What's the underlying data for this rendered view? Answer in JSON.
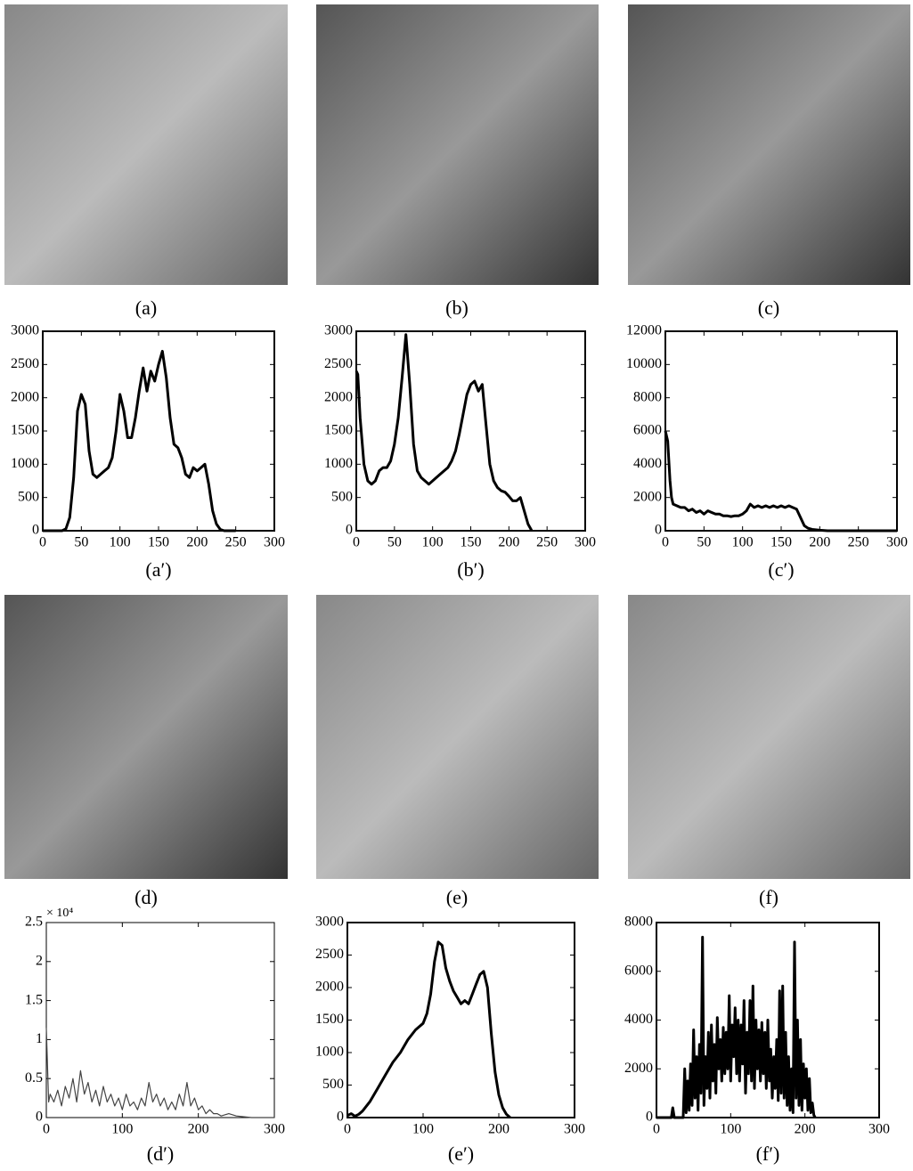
{
  "images": [
    {
      "caption": "(a)"
    },
    {
      "caption": "(b)"
    },
    {
      "caption": "(c)"
    },
    {
      "caption": "(d)"
    },
    {
      "caption": "(e)"
    },
    {
      "caption": "(f)"
    }
  ],
  "chart_data": [
    {
      "type": "line",
      "caption": "(a′)",
      "color": "#000000",
      "x": [
        0,
        5,
        10,
        15,
        20,
        25,
        30,
        35,
        40,
        45,
        50,
        55,
        60,
        65,
        70,
        75,
        80,
        85,
        90,
        95,
        100,
        105,
        110,
        115,
        120,
        125,
        130,
        135,
        140,
        145,
        150,
        155,
        160,
        165,
        170,
        175,
        180,
        185,
        190,
        195,
        200,
        205,
        210,
        215,
        220,
        225,
        230,
        235,
        240,
        245,
        250
      ],
      "values": [
        0,
        0,
        0,
        0,
        0,
        0,
        30,
        200,
        800,
        1800,
        2050,
        1900,
        1200,
        850,
        800,
        850,
        900,
        950,
        1100,
        1500,
        2050,
        1800,
        1400,
        1400,
        1700,
        2100,
        2450,
        2100,
        2400,
        2250,
        2500,
        2700,
        2300,
        1700,
        1300,
        1250,
        1100,
        850,
        800,
        950,
        900,
        950,
        1000,
        700,
        300,
        100,
        20,
        0,
        0,
        0,
        0
      ],
      "xlim": [
        0,
        300
      ],
      "xticks": [
        0,
        50,
        100,
        150,
        200,
        250,
        300
      ],
      "ylim": [
        0,
        3000
      ],
      "yticks": [
        0,
        500,
        1000,
        1500,
        2000,
        2500,
        3000
      ]
    },
    {
      "type": "line",
      "caption": "(b′)",
      "color": "#000000",
      "x": [
        0,
        2,
        5,
        10,
        15,
        20,
        25,
        30,
        35,
        40,
        45,
        50,
        55,
        60,
        65,
        70,
        75,
        80,
        85,
        90,
        95,
        100,
        105,
        110,
        115,
        120,
        125,
        130,
        135,
        140,
        145,
        150,
        155,
        160,
        165,
        170,
        175,
        180,
        185,
        190,
        195,
        200,
        205,
        210,
        215,
        220,
        225,
        230
      ],
      "values": [
        2400,
        2350,
        1700,
        1000,
        750,
        700,
        750,
        900,
        950,
        950,
        1050,
        1300,
        1700,
        2300,
        2950,
        2200,
        1300,
        900,
        800,
        750,
        700,
        750,
        800,
        850,
        900,
        950,
        1050,
        1200,
        1450,
        1750,
        2050,
        2200,
        2250,
        2100,
        2200,
        1600,
        1000,
        750,
        650,
        600,
        580,
        520,
        450,
        450,
        500,
        300,
        100,
        0
      ],
      "xlim": [
        0,
        300
      ],
      "xticks": [
        0,
        50,
        100,
        150,
        200,
        250,
        300
      ],
      "ylim": [
        0,
        3000
      ],
      "yticks": [
        0,
        500,
        1000,
        1500,
        2000,
        2500,
        3000
      ]
    },
    {
      "type": "line",
      "caption": "(c′)",
      "color": "#000000",
      "x": [
        0,
        3,
        6,
        8,
        10,
        15,
        20,
        25,
        30,
        35,
        40,
        45,
        50,
        55,
        60,
        65,
        70,
        75,
        80,
        85,
        90,
        95,
        100,
        105,
        110,
        115,
        120,
        125,
        130,
        135,
        140,
        145,
        150,
        155,
        160,
        165,
        170,
        175,
        180,
        185,
        190,
        200,
        210,
        250,
        300
      ],
      "values": [
        6000,
        5400,
        3000,
        2000,
        1600,
        1500,
        1400,
        1400,
        1200,
        1300,
        1100,
        1200,
        1000,
        1200,
        1100,
        1000,
        1000,
        900,
        900,
        850,
        900,
        900,
        1000,
        1200,
        1600,
        1400,
        1500,
        1400,
        1500,
        1400,
        1500,
        1400,
        1500,
        1400,
        1500,
        1400,
        1300,
        800,
        300,
        150,
        80,
        30,
        0,
        0,
        0
      ],
      "xlim": [
        0,
        300
      ],
      "xticks": [
        0,
        50,
        100,
        150,
        200,
        250,
        300
      ],
      "ylim": [
        0,
        12000
      ],
      "yticks": [
        0,
        2000,
        4000,
        6000,
        8000,
        10000,
        12000
      ]
    },
    {
      "type": "line",
      "caption": "(d′)",
      "color": "#444444",
      "y_scale_label": "× 10⁴",
      "x": [
        0,
        3,
        5,
        10,
        15,
        20,
        25,
        30,
        35,
        40,
        45,
        50,
        55,
        60,
        65,
        70,
        75,
        80,
        85,
        90,
        95,
        100,
        105,
        110,
        115,
        120,
        125,
        130,
        135,
        140,
        145,
        150,
        155,
        160,
        165,
        170,
        175,
        180,
        185,
        190,
        195,
        200,
        205,
        210,
        215,
        220,
        225,
        230,
        240,
        250,
        260,
        270,
        300
      ],
      "values": [
        1.15,
        0.2,
        0.3,
        0.2,
        0.35,
        0.15,
        0.4,
        0.25,
        0.5,
        0.2,
        0.6,
        0.3,
        0.45,
        0.2,
        0.35,
        0.15,
        0.4,
        0.2,
        0.3,
        0.15,
        0.25,
        0.1,
        0.3,
        0.15,
        0.2,
        0.1,
        0.25,
        0.15,
        0.45,
        0.2,
        0.3,
        0.15,
        0.25,
        0.1,
        0.2,
        0.1,
        0.3,
        0.15,
        0.45,
        0.15,
        0.25,
        0.1,
        0.15,
        0.05,
        0.1,
        0.05,
        0.05,
        0.02,
        0.05,
        0.02,
        0.01,
        0,
        0
      ],
      "xlim": [
        0,
        300
      ],
      "xticks": [
        0,
        100,
        200,
        300
      ],
      "ylim": [
        0,
        2.5
      ],
      "yticks": [
        0,
        0.5,
        1,
        1.5,
        2,
        2.5
      ]
    },
    {
      "type": "line",
      "caption": "(e′)",
      "color": "#000000",
      "x": [
        0,
        5,
        10,
        15,
        20,
        30,
        40,
        50,
        60,
        70,
        80,
        90,
        100,
        105,
        110,
        115,
        120,
        125,
        130,
        135,
        140,
        145,
        150,
        155,
        160,
        165,
        170,
        175,
        180,
        185,
        190,
        195,
        200,
        205,
        210,
        215
      ],
      "values": [
        30,
        60,
        20,
        50,
        100,
        250,
        450,
        650,
        850,
        1000,
        1200,
        1350,
        1450,
        1600,
        1900,
        2400,
        2700,
        2650,
        2300,
        2100,
        1950,
        1850,
        1750,
        1800,
        1750,
        1900,
        2050,
        2200,
        2250,
        2000,
        1300,
        700,
        350,
        150,
        50,
        0
      ],
      "xlim": [
        0,
        300
      ],
      "xticks": [
        0,
        100,
        200,
        300
      ],
      "ylim": [
        0,
        3000
      ],
      "yticks": [
        0,
        500,
        1000,
        1500,
        2000,
        2500,
        3000
      ]
    },
    {
      "type": "line",
      "caption": "(f′)",
      "color": "#000000",
      "x": [
        0,
        20,
        22,
        24,
        36,
        38,
        40,
        42,
        44,
        46,
        48,
        50,
        52,
        54,
        56,
        58,
        60,
        62,
        64,
        66,
        68,
        70,
        72,
        74,
        76,
        78,
        80,
        82,
        84,
        86,
        88,
        90,
        92,
        94,
        96,
        98,
        100,
        102,
        104,
        106,
        108,
        110,
        112,
        114,
        116,
        118,
        120,
        122,
        124,
        126,
        128,
        130,
        132,
        134,
        136,
        138,
        140,
        142,
        144,
        146,
        148,
        150,
        152,
        154,
        156,
        158,
        160,
        162,
        164,
        166,
        168,
        170,
        172,
        174,
        176,
        178,
        180,
        182,
        184,
        186,
        188,
        190,
        192,
        194,
        196,
        198,
        200,
        202,
        204,
        206,
        208,
        210,
        212,
        214
      ],
      "values": [
        0,
        0,
        400,
        0,
        0,
        2000,
        200,
        1500,
        300,
        2200,
        500,
        3600,
        800,
        2500,
        300,
        3000,
        1000,
        7400,
        500,
        2500,
        1200,
        3500,
        800,
        3800,
        1500,
        3000,
        1000,
        4100,
        2000,
        3200,
        1500,
        3700,
        1800,
        3500,
        2000,
        5000,
        1500,
        3800,
        2500,
        4500,
        1800,
        4000,
        1500,
        3800,
        2200,
        4800,
        1000,
        3500,
        1800,
        4800,
        1500,
        5400,
        1200,
        4000,
        2000,
        3600,
        1500,
        3900,
        1800,
        3500,
        1200,
        4000,
        1500,
        2800,
        800,
        2500,
        1200,
        3200,
        700,
        5200,
        1000,
        5400,
        800,
        3500,
        500,
        2500,
        300,
        2000,
        200,
        7200,
        800,
        4000,
        500,
        3200,
        300,
        2200,
        800,
        2000,
        300,
        1600,
        200,
        600,
        100,
        0
      ],
      "xlim": [
        0,
        300
      ],
      "xticks": [
        0,
        100,
        200,
        300
      ],
      "ylim": [
        0,
        8000
      ],
      "yticks": [
        0,
        2000,
        4000,
        6000,
        8000
      ]
    }
  ]
}
